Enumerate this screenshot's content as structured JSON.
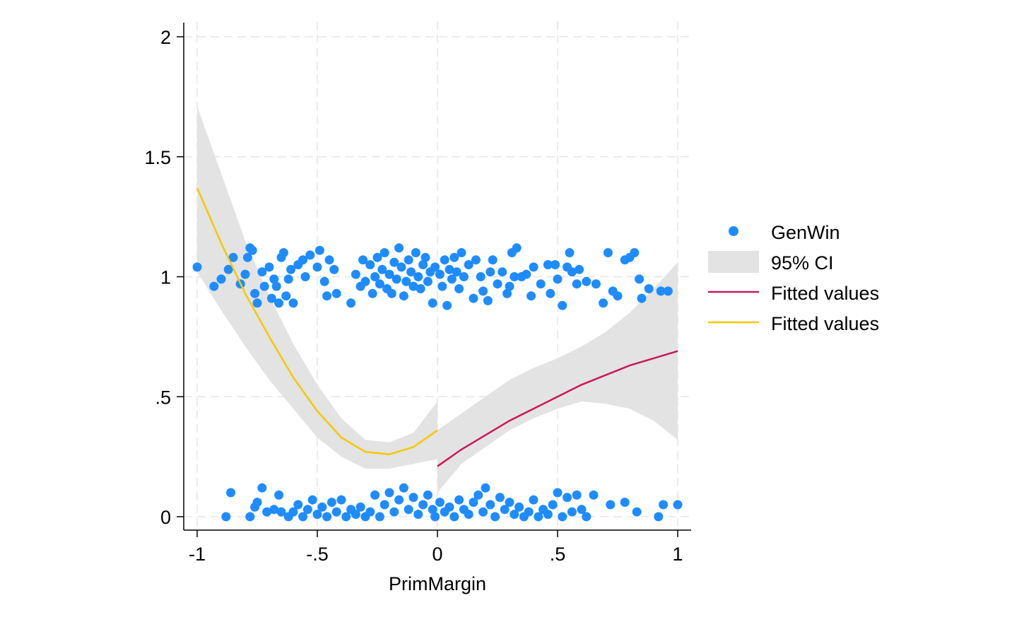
{
  "chart_data": {
    "type": "scatter",
    "title": "",
    "xlabel": "PrimMargin",
    "ylabel": "",
    "xlim": [
      -1.05,
      1.05
    ],
    "ylim": [
      -0.05,
      2.05
    ],
    "x_ticks": [
      -1,
      -0.5,
      0,
      0.5,
      1
    ],
    "x_tick_labels": [
      "-1",
      "-.5",
      "0",
      ".5",
      "1"
    ],
    "y_ticks": [
      0,
      0.5,
      1,
      1.5,
      2
    ],
    "y_tick_labels": [
      "0",
      ".5",
      "1",
      "1.5",
      "2"
    ],
    "grid": true,
    "legend_position": "right",
    "colors": {
      "scatter": "#1e8cff",
      "ci": "#e3e3e3",
      "fit_right": "#c8195a",
      "fit_left": "#f5c800"
    },
    "legend": [
      {
        "label": "GenWin",
        "kind": "marker"
      },
      {
        "label": "95% CI",
        "kind": "area"
      },
      {
        "label": "Fitted values",
        "kind": "line-right"
      },
      {
        "label": "Fitted values",
        "kind": "line-left"
      }
    ],
    "ci_left": {
      "x": [
        -1,
        -0.9,
        -0.8,
        -0.7,
        -0.6,
        -0.5,
        -0.4,
        -0.3,
        -0.2,
        -0.1,
        0
      ],
      "lower": [
        1.02,
        0.86,
        0.71,
        0.57,
        0.45,
        0.33,
        0.25,
        0.2,
        0.2,
        0.22,
        0.24
      ],
      "upper": [
        1.71,
        1.43,
        1.15,
        0.92,
        0.72,
        0.55,
        0.41,
        0.32,
        0.31,
        0.35,
        0.48
      ]
    },
    "ci_right": {
      "x": [
        0,
        0.1,
        0.2,
        0.3,
        0.4,
        0.5,
        0.6,
        0.7,
        0.8,
        0.9,
        1
      ],
      "lower": [
        0.1,
        0.22,
        0.29,
        0.36,
        0.41,
        0.45,
        0.48,
        0.47,
        0.45,
        0.4,
        0.32
      ],
      "upper": [
        0.36,
        0.43,
        0.5,
        0.57,
        0.62,
        0.66,
        0.71,
        0.77,
        0.85,
        0.95,
        1.06
      ]
    },
    "fit_left": {
      "x": [
        -1,
        -0.9,
        -0.8,
        -0.7,
        -0.6,
        -0.5,
        -0.4,
        -0.3,
        -0.2,
        -0.1,
        0
      ],
      "y": [
        1.37,
        1.14,
        0.93,
        0.75,
        0.58,
        0.44,
        0.33,
        0.27,
        0.26,
        0.29,
        0.36
      ]
    },
    "fit_right": {
      "x": [
        0,
        0.1,
        0.2,
        0.3,
        0.4,
        0.5,
        0.6,
        0.7,
        0.8,
        0.9,
        1
      ],
      "y": [
        0.21,
        0.28,
        0.34,
        0.4,
        0.45,
        0.5,
        0.55,
        0.59,
        0.63,
        0.66,
        0.69
      ]
    },
    "series": [
      {
        "name": "GenWin",
        "points": [
          [
            -1.0,
            1.04
          ],
          [
            -0.93,
            0.96
          ],
          [
            -0.9,
            0.99
          ],
          [
            -0.87,
            1.03
          ],
          [
            -0.85,
            1.08
          ],
          [
            -0.82,
            0.97
          ],
          [
            -0.8,
            1.01
          ],
          [
            -0.78,
            1.12
          ],
          [
            -0.77,
            1.11
          ],
          [
            -0.79,
            1.08
          ],
          [
            -0.76,
            0.93
          ],
          [
            -0.75,
            0.89
          ],
          [
            -0.73,
            1.02
          ],
          [
            -0.72,
            0.96
          ],
          [
            -0.7,
            1.04
          ],
          [
            -0.69,
            0.91
          ],
          [
            -0.68,
            0.99
          ],
          [
            -0.67,
            0.96
          ],
          [
            -0.66,
            0.89
          ],
          [
            -0.65,
            1.08
          ],
          [
            -0.64,
            1.1
          ],
          [
            -0.63,
            0.92
          ],
          [
            -0.62,
            0.99
          ],
          [
            -0.61,
            1.03
          ],
          [
            -0.6,
            0.89
          ],
          [
            -0.58,
            1.05
          ],
          [
            -0.56,
            1.07
          ],
          [
            -0.55,
            1.0
          ],
          [
            -0.53,
            1.09
          ],
          [
            -0.5,
            1.04
          ],
          [
            -0.49,
            1.11
          ],
          [
            -0.47,
            0.98
          ],
          [
            -0.46,
            0.92
          ],
          [
            -0.45,
            1.07
          ],
          [
            -0.43,
            1.03
          ],
          [
            -0.42,
            0.93
          ],
          [
            -0.36,
            0.89
          ],
          [
            -0.34,
            1.01
          ],
          [
            -0.32,
            0.96
          ],
          [
            -0.31,
            1.07
          ],
          [
            -0.3,
            0.98
          ],
          [
            -0.28,
            1.05
          ],
          [
            -0.27,
            0.93
          ],
          [
            -0.26,
            1.0
          ],
          [
            -0.25,
            1.08
          ],
          [
            -0.24,
            0.97
          ],
          [
            -0.23,
            1.03
          ],
          [
            -0.22,
            1.1
          ],
          [
            -0.21,
            0.95
          ],
          [
            -0.2,
            1.01
          ],
          [
            -0.19,
            0.93
          ],
          [
            -0.18,
            1.06
          ],
          [
            -0.17,
            0.99
          ],
          [
            -0.16,
            1.12
          ],
          [
            -0.15,
            1.04
          ],
          [
            -0.14,
            0.92
          ],
          [
            -0.13,
            0.98
          ],
          [
            -0.12,
            1.07
          ],
          [
            -0.11,
            1.02
          ],
          [
            -0.1,
            0.96
          ],
          [
            -0.09,
            1.1
          ],
          [
            -0.08,
            1.0
          ],
          [
            -0.07,
            0.95
          ],
          [
            -0.06,
            1.05
          ],
          [
            -0.05,
            1.08
          ],
          [
            -0.04,
            0.98
          ],
          [
            -0.03,
            1.02
          ],
          [
            -0.02,
            0.89
          ],
          [
            -0.01,
            1.04
          ],
          [
            0.01,
            1.01
          ],
          [
            0.02,
            0.96
          ],
          [
            0.03,
            1.07
          ],
          [
            0.04,
            0.88
          ],
          [
            0.05,
            1.03
          ],
          [
            0.06,
            0.99
          ],
          [
            0.07,
            1.08
          ],
          [
            0.08,
            1.02
          ],
          [
            0.09,
            0.95
          ],
          [
            0.1,
            1.1
          ],
          [
            0.11,
            1.0
          ],
          [
            0.13,
            1.05
          ],
          [
            0.15,
            0.91
          ],
          [
            0.16,
            1.07
          ],
          [
            0.18,
            1.0
          ],
          [
            0.19,
            0.94
          ],
          [
            0.21,
            0.9
          ],
          [
            0.22,
            1.02
          ],
          [
            0.23,
            1.07
          ],
          [
            0.25,
            0.97
          ],
          [
            0.27,
            1.02
          ],
          [
            0.29,
            0.93
          ],
          [
            0.3,
            0.96
          ],
          [
            0.31,
            1.1
          ],
          [
            0.32,
            1.0
          ],
          [
            0.33,
            1.12
          ],
          [
            0.35,
            1.0
          ],
          [
            0.37,
            1.01
          ],
          [
            0.39,
            0.92
          ],
          [
            0.4,
            1.04
          ],
          [
            0.43,
            0.97
          ],
          [
            0.46,
            1.05
          ],
          [
            0.47,
            0.93
          ],
          [
            0.49,
            1.05
          ],
          [
            0.5,
            0.99
          ],
          [
            0.52,
            0.88
          ],
          [
            0.54,
            1.04
          ],
          [
            0.55,
            1.1
          ],
          [
            0.56,
            1.02
          ],
          [
            0.58,
            0.97
          ],
          [
            0.59,
            1.03
          ],
          [
            0.62,
            0.98
          ],
          [
            0.66,
            0.97
          ],
          [
            0.69,
            0.89
          ],
          [
            0.71,
            1.1
          ],
          [
            0.73,
            0.94
          ],
          [
            0.75,
            0.92
          ],
          [
            0.78,
            1.07
          ],
          [
            0.8,
            1.08
          ],
          [
            0.82,
            1.1
          ],
          [
            0.84,
            0.99
          ],
          [
            0.85,
            0.91
          ],
          [
            0.88,
            0.95
          ],
          [
            0.93,
            0.94
          ],
          [
            0.96,
            0.94
          ],
          [
            -0.88,
            0.0
          ],
          [
            -0.86,
            0.1
          ],
          [
            -0.78,
            0.0
          ],
          [
            -0.76,
            0.04
          ],
          [
            -0.75,
            0.06
          ],
          [
            -0.73,
            0.12
          ],
          [
            -0.71,
            0.02
          ],
          [
            -0.68,
            0.03
          ],
          [
            -0.66,
            0.09
          ],
          [
            -0.65,
            0.02
          ],
          [
            -0.62,
            0.0
          ],
          [
            -0.6,
            0.02
          ],
          [
            -0.58,
            0.05
          ],
          [
            -0.56,
            0.0
          ],
          [
            -0.54,
            0.03
          ],
          [
            -0.52,
            0.07
          ],
          [
            -0.5,
            0.01
          ],
          [
            -0.48,
            0.04
          ],
          [
            -0.46,
            0.0
          ],
          [
            -0.44,
            0.06
          ],
          [
            -0.42,
            0.02
          ],
          [
            -0.4,
            0.07
          ],
          [
            -0.38,
            0.0
          ],
          [
            -0.36,
            0.03
          ],
          [
            -0.34,
            0.01
          ],
          [
            -0.32,
            0.04
          ],
          [
            -0.3,
            0.0
          ],
          [
            -0.28,
            0.02
          ],
          [
            -0.26,
            0.09
          ],
          [
            -0.24,
            0.0
          ],
          [
            -0.22,
            0.05
          ],
          [
            -0.2,
            0.1
          ],
          [
            -0.18,
            0.02
          ],
          [
            -0.16,
            0.07
          ],
          [
            -0.14,
            0.12
          ],
          [
            -0.12,
            0.03
          ],
          [
            -0.1,
            0.08
          ],
          [
            -0.08,
            0.01
          ],
          [
            -0.06,
            0.05
          ],
          [
            -0.04,
            0.09
          ],
          [
            -0.02,
            0.03
          ],
          [
            -0.01,
            0.0
          ],
          [
            0.01,
            0.06
          ],
          [
            0.03,
            0.02
          ],
          [
            0.05,
            0.04
          ],
          [
            0.07,
            0.0
          ],
          [
            0.09,
            0.07
          ],
          [
            0.11,
            0.03
          ],
          [
            0.13,
            0.01
          ],
          [
            0.15,
            0.06
          ],
          [
            0.17,
            0.09
          ],
          [
            0.19,
            0.02
          ],
          [
            0.2,
            0.12
          ],
          [
            0.22,
            0.05
          ],
          [
            0.24,
            0.0
          ],
          [
            0.26,
            0.08
          ],
          [
            0.28,
            0.03
          ],
          [
            0.3,
            0.06
          ],
          [
            0.32,
            0.01
          ],
          [
            0.34,
            0.04
          ],
          [
            0.36,
            0.0
          ],
          [
            0.38,
            0.02
          ],
          [
            0.4,
            0.07
          ],
          [
            0.42,
            0.0
          ],
          [
            0.44,
            0.03
          ],
          [
            0.46,
            0.01
          ],
          [
            0.48,
            0.05
          ],
          [
            0.5,
            0.1
          ],
          [
            0.52,
            0.0
          ],
          [
            0.54,
            0.08
          ],
          [
            0.56,
            0.02
          ],
          [
            0.58,
            0.09
          ],
          [
            0.6,
            0.03
          ],
          [
            0.62,
            0.0
          ],
          [
            0.65,
            0.09
          ],
          [
            0.72,
            0.05
          ],
          [
            0.78,
            0.06
          ],
          [
            0.83,
            0.02
          ],
          [
            0.92,
            0.0
          ],
          [
            0.94,
            0.05
          ],
          [
            1.0,
            0.05
          ]
        ]
      }
    ]
  }
}
